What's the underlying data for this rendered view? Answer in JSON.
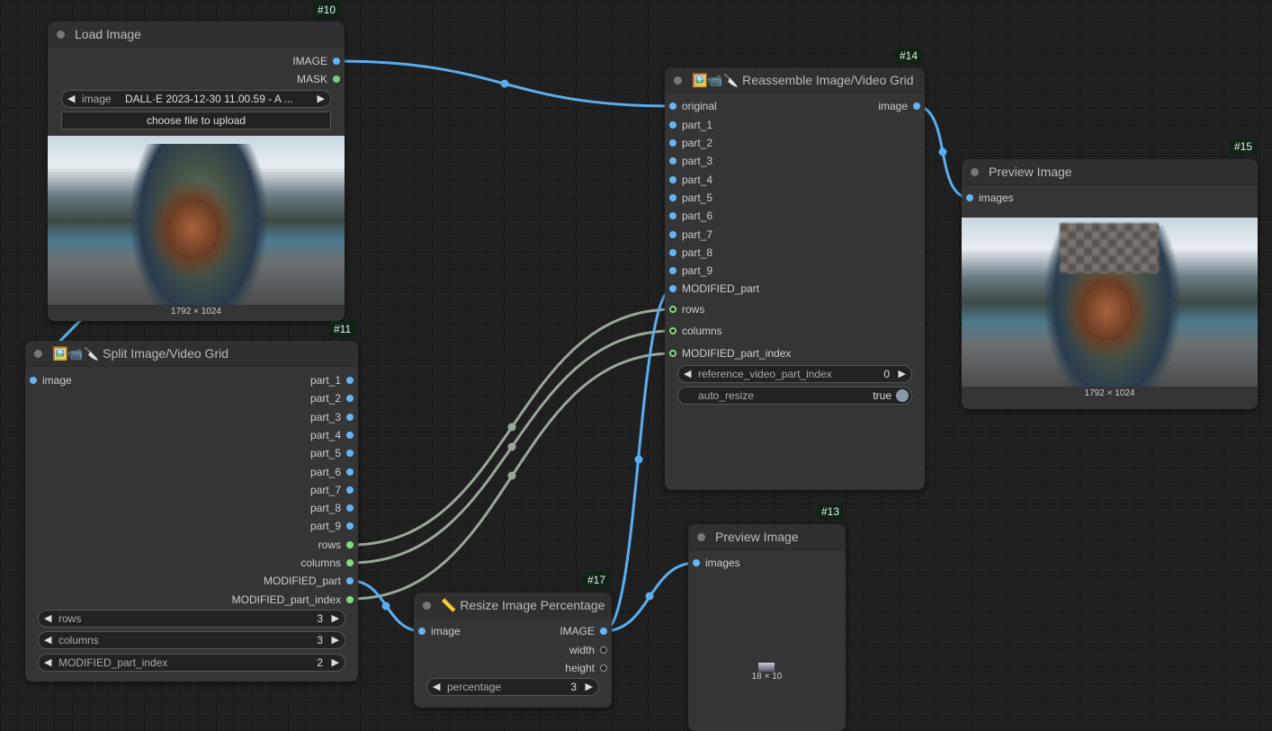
{
  "colors": {
    "image": "#64b5f6",
    "mask": "#81c784",
    "int": "#7ee07e",
    "int_link": "#9aa89a",
    "link": "#5aaef0"
  },
  "nodes": {
    "load": {
      "id": "#10",
      "title": "Load Image",
      "outputs": [
        "IMAGE",
        "MASK"
      ],
      "widget": {
        "label": "image",
        "value": "DALL·E 2023-12-30 11.00.59 - A ..."
      },
      "upload": "choose file to upload",
      "caption": "1792 × 1024"
    },
    "split": {
      "id": "#11",
      "title": "🖼️📹🔪 Split Image/Video Grid",
      "inputs": [
        "image"
      ],
      "outputs": [
        "part_1",
        "part_2",
        "part_3",
        "part_4",
        "part_5",
        "part_6",
        "part_7",
        "part_8",
        "part_9",
        "rows",
        "columns",
        "MODIFIED_part",
        "MODIFIED_part_index"
      ],
      "widgets": [
        {
          "label": "rows",
          "value": "3"
        },
        {
          "label": "columns",
          "value": "3"
        },
        {
          "label": "MODIFIED_part_index",
          "value": "2"
        }
      ]
    },
    "reassemble": {
      "id": "#14",
      "title": "🖼️📹🔪 Reassemble Image/Video Grid",
      "inputs": [
        "original",
        "part_1",
        "part_2",
        "part_3",
        "part_4",
        "part_5",
        "part_6",
        "part_7",
        "part_8",
        "part_9",
        "MODIFIED_part",
        "rows",
        "columns",
        "MODIFIED_part_index"
      ],
      "outputs": [
        "image"
      ],
      "widgets": [
        {
          "label": "reference_video_part_index",
          "value": "0"
        },
        {
          "label": "auto_resize",
          "value": "true",
          "toggle": true
        }
      ]
    },
    "preview15": {
      "id": "#15",
      "title": "Preview Image",
      "inputs": [
        "images"
      ],
      "caption": "1792 × 1024"
    },
    "preview13": {
      "id": "#13",
      "title": "Preview Image",
      "inputs": [
        "images"
      ],
      "caption": "18 × 10"
    },
    "resize": {
      "id": "#17",
      "title": "📏 Resize Image Percentage",
      "inputs": [
        "image"
      ],
      "outputs": [
        "IMAGE",
        "width",
        "height"
      ],
      "widgets": [
        {
          "label": "percentage",
          "value": "3"
        }
      ]
    }
  }
}
